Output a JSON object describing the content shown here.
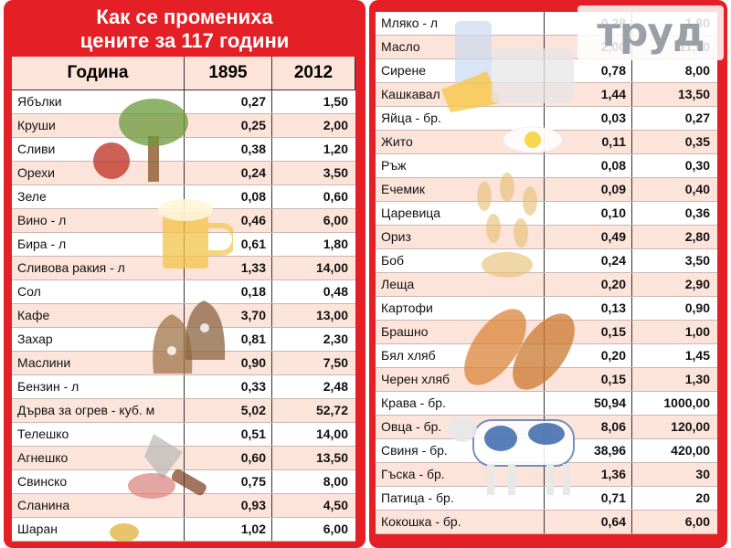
{
  "title_line1": "Как се промениха",
  "title_line2": "цените за 117 години",
  "header": {
    "year": "Година",
    "y1": "1895",
    "y2": "2012"
  },
  "logo_text": "труд",
  "left_rows": [
    {
      "item": "Ябълки",
      "p1895": "0,27",
      "p2012": "1,50"
    },
    {
      "item": "Круши",
      "p1895": "0,25",
      "p2012": "2,00"
    },
    {
      "item": "Сливи",
      "p1895": "0,38",
      "p2012": "1,20"
    },
    {
      "item": "Орехи",
      "p1895": "0,24",
      "p2012": "3,50"
    },
    {
      "item": "Зеле",
      "p1895": "0,08",
      "p2012": "0,60"
    },
    {
      "item": "Вино - л",
      "p1895": "0,46",
      "p2012": "6,00"
    },
    {
      "item": "Бира - л",
      "p1895": "0,61",
      "p2012": "1,80"
    },
    {
      "item": "Сливова ракия - л",
      "p1895": "1,33",
      "p2012": "14,00"
    },
    {
      "item": "Сол",
      "p1895": "0,18",
      "p2012": "0,48"
    },
    {
      "item": "Кафе",
      "p1895": "3,70",
      "p2012": "13,00"
    },
    {
      "item": "Захар",
      "p1895": "0,81",
      "p2012": "2,30"
    },
    {
      "item": "Маслини",
      "p1895": "0,90",
      "p2012": "7,50"
    },
    {
      "item": "Бензин - л",
      "p1895": "0,33",
      "p2012": "2,48"
    },
    {
      "item": "Дърва за огрев - куб. м",
      "p1895": "5,02",
      "p2012": "52,72"
    },
    {
      "item": "Телешко",
      "p1895": "0,51",
      "p2012": "14,00"
    },
    {
      "item": "Агнешко",
      "p1895": "0,60",
      "p2012": "13,50"
    },
    {
      "item": "Свинско",
      "p1895": "0,75",
      "p2012": "8,00"
    },
    {
      "item": "Сланина",
      "p1895": "0,93",
      "p2012": "4,50"
    },
    {
      "item": "Шаран",
      "p1895": "1,02",
      "p2012": "6,00"
    }
  ],
  "right_rows": [
    {
      "item": "Мляко - л",
      "p1895": "0,28",
      "p2012": "1,80"
    },
    {
      "item": "Масло",
      "p1895": "2,00",
      "p2012": "11,00"
    },
    {
      "item": "Сирене",
      "p1895": "0,78",
      "p2012": "8,00"
    },
    {
      "item": "Кашкавал",
      "p1895": "1,44",
      "p2012": "13,50"
    },
    {
      "item": "Яйца - бр.",
      "p1895": "0,03",
      "p2012": "0,27"
    },
    {
      "item": "Жито",
      "p1895": "0,11",
      "p2012": "0,35"
    },
    {
      "item": "Ръж",
      "p1895": "0,08",
      "p2012": "0,30"
    },
    {
      "item": "Ечемик",
      "p1895": "0,09",
      "p2012": "0,40"
    },
    {
      "item": "Царевица",
      "p1895": "0,10",
      "p2012": "0,36"
    },
    {
      "item": "Ориз",
      "p1895": "0,49",
      "p2012": "2,80"
    },
    {
      "item": "Боб",
      "p1895": "0,24",
      "p2012": "3,50"
    },
    {
      "item": "Леща",
      "p1895": "0,20",
      "p2012": "2,90"
    },
    {
      "item": "Картофи",
      "p1895": "0,13",
      "p2012": "0,90"
    },
    {
      "item": "Брашно",
      "p1895": "0,15",
      "p2012": "1,00"
    },
    {
      "item": "Бял хляб",
      "p1895": "0,20",
      "p2012": "1,45"
    },
    {
      "item": "Черен хляб",
      "p1895": "0,15",
      "p2012": "1,30"
    },
    {
      "item": "Крава - бр.",
      "p1895": "50,94",
      "p2012": "1000,00"
    },
    {
      "item": "Овца - бр.",
      "p1895": "8,06",
      "p2012": "120,00"
    },
    {
      "item": "Свиня - бр.",
      "p1895": "38,96",
      "p2012": "420,00"
    },
    {
      "item": "Гъска - бр.",
      "p1895": "1,36",
      "p2012": "30"
    },
    {
      "item": "Патица - бр.",
      "p1895": "0,71",
      "p2012": "20"
    },
    {
      "item": "Кокошка - бр.",
      "p1895": "0,64",
      "p2012": "6,00"
    }
  ],
  "colors": {
    "frame": "#e41f26",
    "row_alt": "#fde4db"
  }
}
